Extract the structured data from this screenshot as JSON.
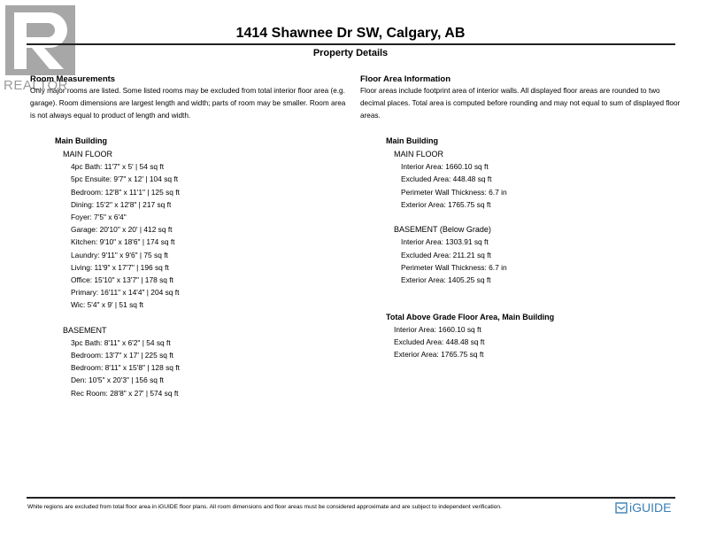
{
  "logo": {
    "text": "REALTOR",
    "icon": "realtor-r-logo"
  },
  "header": {
    "title": "1414 Shawnee Dr SW, Calgary, AB",
    "subtitle": "Property Details"
  },
  "room_measurements": {
    "heading": "Room Measurements",
    "note": "Only major rooms are listed. Some listed rooms may be excluded from total interior floor area (e.g. garage). Room dimensions are largest length and width; parts of room may be smaller. Room area is not always equal to product of length and width.",
    "building": "Main Building",
    "floors": [
      {
        "name": "MAIN FLOOR",
        "rooms": [
          "4pc Bath: 11'7\" x 5' | 54 sq ft",
          "5pc Ensuite: 9'7\" x 12' | 104 sq ft",
          "Bedroom: 12'8\" x 11'1\" | 125 sq ft",
          "Dining: 15'2\" x 12'8\" | 217 sq ft",
          "Foyer: 7'5\" x 6'4\"",
          "Garage: 20'10\" x 20' | 412 sq ft",
          "Kitchen: 9'10\" x 18'6\" | 174 sq ft",
          "Laundry: 9'11\" x 9'6\" | 75 sq ft",
          "Living: 11'9\" x 17'7\" | 196 sq ft",
          "Office: 15'10\" x 13'7\" | 178 sq ft",
          "Primary: 16'11\" x 14'4\" | 204 sq ft",
          "Wic: 5'4\" x 9' | 51 sq ft"
        ]
      },
      {
        "name": "BASEMENT",
        "rooms": [
          "3pc Bath: 8'11\" x 6'2\" | 54 sq ft",
          "Bedroom: 13'7\" x 17' | 225 sq ft",
          "Bedroom: 8'11\" x 15'8\" | 128 sq ft",
          "Den: 10'5\" x 20'3\" | 156 sq ft",
          "Rec Room: 28'8\" x 27' | 574 sq ft"
        ]
      }
    ]
  },
  "floor_area": {
    "heading": "Floor Area Information",
    "note": "Floor areas include footprint area of interior walls. All displayed floor areas are rounded to two decimal places. Total area is computed before rounding and may not equal to sum of displayed floor areas.",
    "building": "Main Building",
    "floors": [
      {
        "name": "MAIN FLOOR",
        "items": [
          "Interior Area: 1660.10 sq ft",
          "Excluded Area: 448.48 sq ft",
          "Perimeter Wall Thickness: 6.7 in",
          "Exterior Area: 1765.75 sq ft"
        ]
      },
      {
        "name": "BASEMENT (Below Grade)",
        "items": [
          "Interior Area: 1303.91 sq ft",
          "Excluded Area: 211.21 sq ft",
          "Perimeter Wall Thickness: 6.7 in",
          "Exterior Area: 1405.25 sq ft"
        ]
      }
    ],
    "total": {
      "heading": "Total Above Grade Floor Area, Main Building",
      "items": [
        "Interior Area: 1660.10 sq ft",
        "Excluded Area: 448.48 sq ft",
        "Exterior Area: 1765.75 sq ft"
      ]
    }
  },
  "footer": {
    "text": "White regions are excluded from total floor area in iGUIDE floor plans. All room dimensions and floor areas must be considered approximate and are subject to independent verification.",
    "brand": "iGUIDE",
    "brand_color": "#3a7fb5"
  }
}
